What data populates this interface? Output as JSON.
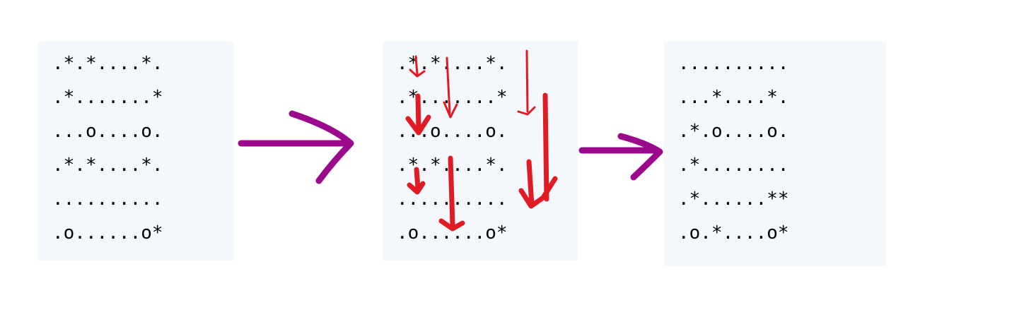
{
  "grids": {
    "before": [
      ".*.*....*.",
      ".*.......*",
      "...o....o.",
      ".*.*....*.",
      "..........",
      ".o......o*"
    ],
    "annotated": [
      ".*.*....*.",
      ".*.......*",
      "...o....o.",
      ".*.*....*.",
      "..........",
      ".o......o*"
    ],
    "after": [
      "..........",
      "...*....*.",
      ".*.o....o.",
      ".*........",
      ".*......**",
      ".o.*....o*"
    ]
  },
  "colors": {
    "panel_bg": "#f4f8fd",
    "transition_arrow": "#9b0a8c",
    "fall_arrow": "#e01b24"
  }
}
